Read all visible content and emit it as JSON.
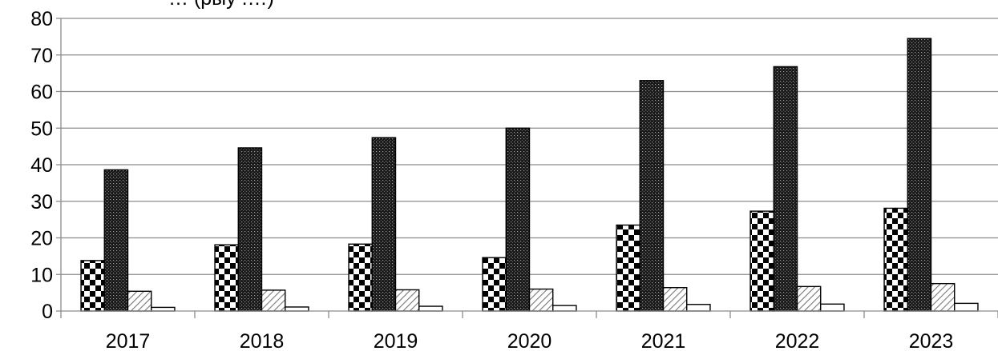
{
  "chart_data": {
    "type": "bar",
    "title": "… (рыу .…)",
    "categories": [
      "2017",
      "2018",
      "2019",
      "2020",
      "2021",
      "2022",
      "2023"
    ],
    "series": [
      {
        "pattern": "checker",
        "values": [
          13.8,
          18.1,
          18.3,
          14.6,
          23.5,
          27.3,
          28.1
        ]
      },
      {
        "pattern": "dots",
        "values": [
          38.6,
          44.6,
          47.4,
          50.0,
          63.0,
          66.8,
          74.5
        ]
      },
      {
        "pattern": "hatch",
        "values": [
          5.4,
          5.7,
          5.8,
          6.0,
          6.4,
          6.7,
          7.5
        ]
      },
      {
        "pattern": "blank",
        "values": [
          1.0,
          1.1,
          1.3,
          1.5,
          1.8,
          1.9,
          2.1
        ]
      }
    ],
    "y_ticks": [
      "0",
      "10",
      "20",
      "30",
      "40",
      "50",
      "60",
      "70",
      "80"
    ],
    "ylim": [
      0,
      80
    ],
    "grid": true,
    "colors": {
      "bar_fill": "#000000",
      "bar_bg": "#ffffff",
      "hatch": "#777777",
      "grid": "#8c8c8c",
      "axis": "#8c8c8c"
    }
  }
}
